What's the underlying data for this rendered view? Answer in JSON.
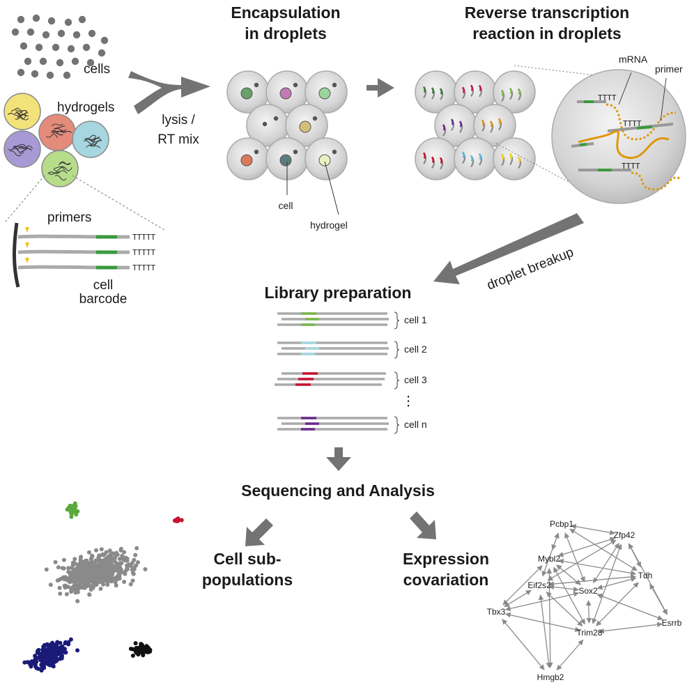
{
  "headings": {
    "encapsulation_l1": "Encapsulation",
    "encapsulation_l2": "in droplets",
    "rt_l1": "Reverse transcription",
    "rt_l2": "reaction in droplets",
    "library": "Library preparation",
    "sequencing": "Sequencing and Analysis",
    "subpop_l1": "Cell sub-",
    "subpop_l2": "populations",
    "covar_l1": "Expression",
    "covar_l2": "covariation"
  },
  "labels": {
    "cells": "cells",
    "hydrogels": "hydrogels",
    "lysis_l1": "lysis /",
    "lysis_l2": "RT mix",
    "primers": "primers",
    "barcode_l1": "cell",
    "barcode_l2": "barcode",
    "polyT": "TTTTT",
    "droplet_cell": "cell",
    "droplet_hydrogel": "hydrogel",
    "mrna": "mRNA",
    "primer": "primer",
    "polyT_short": "TTTT",
    "breakup": "droplet breakup",
    "dots": "⋮"
  },
  "library_groups": [
    {
      "label": "cell 1",
      "color": "#7ab648"
    },
    {
      "label": "cell 2",
      "color": "#a8d8e0"
    },
    {
      "label": "cell 3",
      "color": "#c8102e"
    },
    {
      "label": "cell n",
      "color": "#6a2a8c"
    }
  ],
  "colors": {
    "arrow": "#737373",
    "read": "#aaaaaa",
    "barcode": "#3a9a3a",
    "mrna": "#e0960a",
    "droplet": "#d9d9d9",
    "hydrogel_colors": [
      "#f3e27a",
      "#e58b7c",
      "#a6d6e0",
      "#a79ad4",
      "#b7dc8a"
    ],
    "cluster_green": "#5aa93a",
    "cluster_red": "#c8102e",
    "cluster_grey": "#8a8a8a",
    "cluster_navy": "#1a1a78",
    "cluster_black": "#111111"
  },
  "network": {
    "nodes": [
      {
        "id": "Pcbp1",
        "label": "Pcbp1"
      },
      {
        "id": "Zfp42",
        "label": "Zfp42"
      },
      {
        "id": "Mybl2",
        "label": "Mybl2"
      },
      {
        "id": "Tdh",
        "label": "Tdh"
      },
      {
        "id": "Eif2s2",
        "label": "Eif2s2"
      },
      {
        "id": "Sox2",
        "label": "Sox2"
      },
      {
        "id": "Tbx3",
        "label": "Tbx3"
      },
      {
        "id": "Esrrb",
        "label": "Esrrb"
      },
      {
        "id": "Trim28",
        "label": "Trim28"
      },
      {
        "id": "Hmgb2",
        "label": "Hmgb2"
      }
    ],
    "edges": [
      [
        "Pcbp1",
        "Zfp42"
      ],
      [
        "Pcbp1",
        "Mybl2"
      ],
      [
        "Pcbp1",
        "Eif2s2"
      ],
      [
        "Pcbp1",
        "Sox2"
      ],
      [
        "Pcbp1",
        "Tdh"
      ],
      [
        "Mybl2",
        "Zfp42"
      ],
      [
        "Mybl2",
        "Tdh"
      ],
      [
        "Mybl2",
        "Sox2"
      ],
      [
        "Mybl2",
        "Trim28"
      ],
      [
        "Mybl2",
        "Tbx3"
      ],
      [
        "Mybl2",
        "Hmgb2"
      ],
      [
        "Zfp42",
        "Sox2"
      ],
      [
        "Zfp42",
        "Eif2s2"
      ],
      [
        "Zfp42",
        "Tdh"
      ],
      [
        "Zfp42",
        "Esrrb"
      ],
      [
        "Zfp42",
        "Trim28"
      ],
      [
        "Eif2s2",
        "Sox2"
      ],
      [
        "Eif2s2",
        "Tdh"
      ],
      [
        "Eif2s2",
        "Tbx3"
      ],
      [
        "Eif2s2",
        "Trim28"
      ],
      [
        "Eif2s2",
        "Hmgb2"
      ],
      [
        "Sox2",
        "Tdh"
      ],
      [
        "Sox2",
        "Trim28"
      ],
      [
        "Sox2",
        "Esrrb"
      ],
      [
        "Sox2",
        "Tbx3"
      ],
      [
        "Tdh",
        "Esrrb"
      ],
      [
        "Tdh",
        "Trim28"
      ],
      [
        "Tbx3",
        "Trim28"
      ],
      [
        "Tbx3",
        "Hmgb2"
      ],
      [
        "Trim28",
        "Esrrb"
      ],
      [
        "Trim28",
        "Hmgb2"
      ]
    ]
  }
}
